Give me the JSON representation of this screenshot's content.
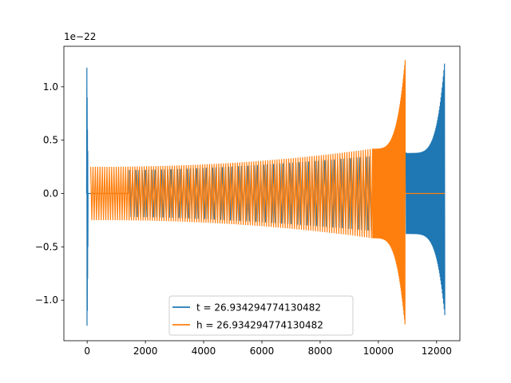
{
  "chart_data": {
    "type": "line",
    "title": "",
    "xlabel": "",
    "ylabel": "",
    "scale_label": "1e−22",
    "xlim": [
      -800,
      12800
    ],
    "ylim": [
      -1.38,
      1.38
    ],
    "x_ticks": [
      0,
      2000,
      4000,
      6000,
      8000,
      10000,
      12000
    ],
    "y_ticks": [
      -1.0,
      -0.5,
      0.0,
      0.5,
      1.0
    ],
    "x_tick_labels": [
      "0",
      "2000",
      "4000",
      "6000",
      "8000",
      "10000",
      "12000"
    ],
    "y_tick_labels": [
      "−1.0",
      "−0.5",
      "0.0",
      "0.5",
      "1.0"
    ],
    "grid": false,
    "legend_position": "bottom-center",
    "series": [
      {
        "name": "t = 26.934294774130482",
        "color": "#1f77b4",
        "initial_burst": {
          "x": [
            -20,
            30
          ],
          "peak": 1.18,
          "trough": -1.24
        },
        "zero_segment": {
          "x": [
            30,
            1450
          ],
          "y": 0.0
        },
        "chirp": {
          "x_start": 1450,
          "x_end": 12280,
          "y_start": 0.0,
          "amp_start": 0.22,
          "amp_mid": 0.38,
          "x_mid": 10950,
          "amp_end": 1.25,
          "trough_end": -1.14
        }
      },
      {
        "name": "h = 26.934294774130482",
        "color": "#ff7f0e",
        "initial_burst": {
          "x": [
            0,
            120
          ],
          "peak": 0.25,
          "trough": -0.25
        },
        "zero_segment": {
          "x": [
            120,
            1450
          ],
          "y": 0.0
        },
        "chirp": {
          "x_start": 120,
          "x_end": 10920,
          "amp_start": 0.25,
          "amp_end": 1.25,
          "trough_end": -1.25
        },
        "tail": {
          "x": [
            10920,
            12280
          ],
          "y": 0.0
        }
      }
    ]
  }
}
